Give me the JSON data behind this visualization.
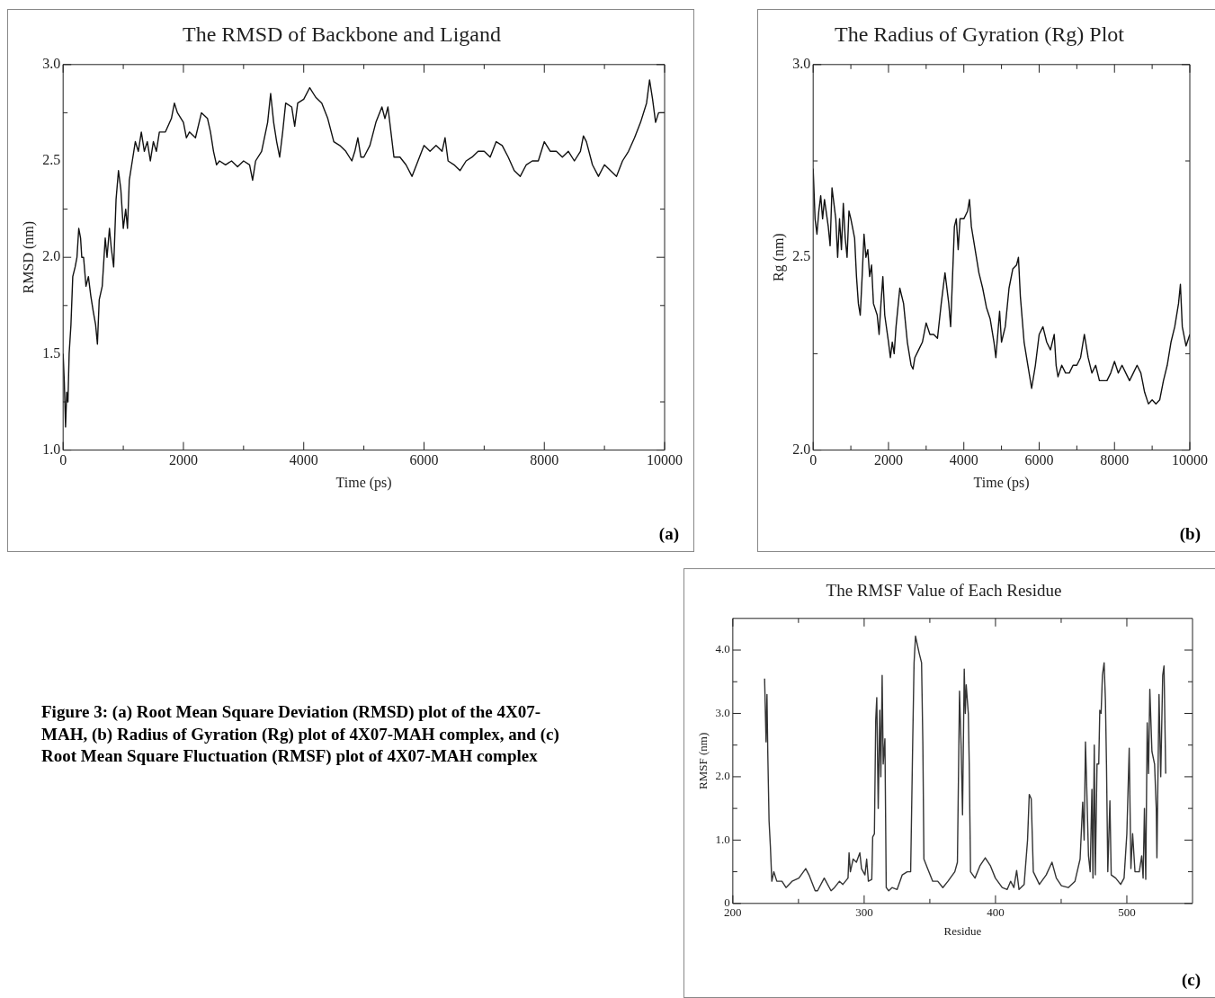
{
  "chart_data": [
    {
      "type": "line",
      "title": "The RMSD of Backbone and Ligand",
      "xlabel": "Time (ps)",
      "ylabel": "RMSD (nm)",
      "annotations": [
        "(a)"
      ],
      "xlim": [
        0,
        10000
      ],
      "ylim": [
        1,
        3
      ],
      "xticks": [
        0,
        {
          "value": 1000,
          "label": null
        },
        2000,
        {
          "value": 3000,
          "label": null
        },
        4000,
        {
          "value": 5000,
          "label": null
        },
        6000,
        {
          "value": 7000,
          "label": null
        },
        8000,
        {
          "value": 9000,
          "label": null
        },
        10000
      ],
      "yticks": [
        {
          "value": 1,
          "label": "1.0"
        },
        {
          "value": 1.25,
          "label": null
        },
        1.5,
        {
          "value": 1.75,
          "label": null
        },
        {
          "value": 2,
          "label": "2.0"
        },
        {
          "value": 2.25,
          "label": null
        },
        2.5,
        {
          "value": 2.75,
          "label": null
        },
        {
          "value": 3,
          "label": "3.0"
        }
      ],
      "x": [
        0,
        20,
        40,
        60,
        80,
        100,
        130,
        160,
        200,
        230,
        260,
        290,
        310,
        340,
        380,
        420,
        460,
        500,
        540,
        570,
        600,
        650,
        700,
        730,
        770,
        800,
        840,
        880,
        920,
        960,
        1000,
        1040,
        1070,
        1100,
        1150,
        1200,
        1250,
        1300,
        1350,
        1400,
        1450,
        1500,
        1550,
        1600,
        1700,
        1800,
        1850,
        1900,
        2000,
        2050,
        2100,
        2200,
        2300,
        2400,
        2450,
        2500,
        2550,
        2600,
        2700,
        2800,
        2900,
        3000,
        3100,
        3150,
        3200,
        3300,
        3400,
        3450,
        3500,
        3550,
        3600,
        3650,
        3700,
        3800,
        3850,
        3900,
        4000,
        4100,
        4200,
        4300,
        4400,
        4500,
        4600,
        4700,
        4800,
        4850,
        4900,
        4950,
        5000,
        5100,
        5200,
        5300,
        5350,
        5400,
        5450,
        5500,
        5600,
        5700,
        5800,
        5900,
        6000,
        6100,
        6200,
        6300,
        6350,
        6400,
        6500,
        6600,
        6700,
        6800,
        6900,
        7000,
        7100,
        7200,
        7300,
        7400,
        7500,
        7600,
        7700,
        7800,
        7900,
        8000,
        8100,
        8200,
        8300,
        8400,
        8500,
        8600,
        8650,
        8700,
        8800,
        8900,
        9000,
        9100,
        9200,
        9300,
        9400,
        9500,
        9600,
        9700,
        9750,
        9800,
        9850,
        9900,
        10000
      ],
      "series": [
        {
          "color": "#111111",
          "values": [
            1.5,
            1.35,
            1.12,
            1.3,
            1.25,
            1.5,
            1.65,
            1.9,
            1.95,
            2.0,
            2.15,
            2.1,
            2.0,
            2.0,
            1.85,
            1.9,
            1.8,
            1.72,
            1.65,
            1.55,
            1.78,
            1.85,
            2.1,
            2.0,
            2.15,
            2.05,
            1.95,
            2.3,
            2.45,
            2.35,
            2.15,
            2.25,
            2.15,
            2.4,
            2.5,
            2.6,
            2.55,
            2.65,
            2.55,
            2.6,
            2.5,
            2.6,
            2.55,
            2.65,
            2.65,
            2.72,
            2.8,
            2.75,
            2.7,
            2.62,
            2.65,
            2.62,
            2.75,
            2.72,
            2.65,
            2.55,
            2.48,
            2.5,
            2.48,
            2.5,
            2.47,
            2.5,
            2.48,
            2.4,
            2.5,
            2.55,
            2.7,
            2.85,
            2.7,
            2.6,
            2.52,
            2.65,
            2.8,
            2.78,
            2.68,
            2.8,
            2.82,
            2.88,
            2.83,
            2.8,
            2.72,
            2.6,
            2.58,
            2.55,
            2.5,
            2.55,
            2.62,
            2.52,
            2.52,
            2.58,
            2.7,
            2.78,
            2.72,
            2.78,
            2.65,
            2.52,
            2.52,
            2.48,
            2.42,
            2.5,
            2.58,
            2.55,
            2.58,
            2.55,
            2.62,
            2.5,
            2.48,
            2.45,
            2.5,
            2.52,
            2.55,
            2.55,
            2.52,
            2.6,
            2.58,
            2.52,
            2.45,
            2.42,
            2.48,
            2.5,
            2.5,
            2.6,
            2.55,
            2.55,
            2.52,
            2.55,
            2.5,
            2.55,
            2.63,
            2.6,
            2.48,
            2.42,
            2.48,
            2.45,
            2.42,
            2.5,
            2.55,
            2.62,
            2.7,
            2.8,
            2.92,
            2.82,
            2.7,
            2.75,
            2.75
          ]
        }
      ]
    },
    {
      "type": "line",
      "title": "The Radius of Gyration (Rg) Plot",
      "xlabel": "Time (ps)",
      "ylabel": "Rg (nm)",
      "annotations": [
        "(b)"
      ],
      "xlim": [
        0,
        10000
      ],
      "ylim": [
        2,
        3
      ],
      "xticks": [
        0,
        {
          "value": 1000,
          "label": null
        },
        2000,
        {
          "value": 3000,
          "label": null
        },
        4000,
        {
          "value": 5000,
          "label": null
        },
        6000,
        {
          "value": 7000,
          "label": null
        },
        8000,
        {
          "value": 9000,
          "label": null
        },
        10000
      ],
      "yticks": [
        {
          "value": 2,
          "label": "2.0"
        },
        {
          "value": 2.25,
          "label": null
        },
        2.5,
        {
          "value": 2.75,
          "label": null
        },
        {
          "value": 3,
          "label": "3.0"
        }
      ],
      "x": [
        0,
        50,
        100,
        150,
        200,
        250,
        300,
        400,
        450,
        500,
        550,
        600,
        650,
        700,
        750,
        800,
        850,
        900,
        950,
        1000,
        1100,
        1150,
        1200,
        1250,
        1300,
        1350,
        1400,
        1450,
        1500,
        1550,
        1600,
        1700,
        1750,
        1800,
        1850,
        1900,
        2000,
        2050,
        2100,
        2150,
        2200,
        2300,
        2400,
        2500,
        2600,
        2650,
        2700,
        2800,
        2900,
        3000,
        3100,
        3200,
        3300,
        3400,
        3500,
        3600,
        3650,
        3700,
        3750,
        3800,
        3850,
        3900,
        4000,
        4100,
        4150,
        4200,
        4300,
        4400,
        4500,
        4600,
        4700,
        4800,
        4850,
        4900,
        4950,
        5000,
        5100,
        5200,
        5300,
        5400,
        5450,
        5500,
        5600,
        5700,
        5800,
        5900,
        6000,
        6100,
        6200,
        6300,
        6400,
        6450,
        6500,
        6600,
        6700,
        6800,
        6900,
        7000,
        7100,
        7200,
        7300,
        7400,
        7500,
        7600,
        7700,
        7800,
        7900,
        8000,
        8100,
        8200,
        8300,
        8400,
        8500,
        8600,
        8700,
        8800,
        8900,
        9000,
        9100,
        9200,
        9300,
        9400,
        9500,
        9600,
        9700,
        9750,
        9800,
        9900,
        10000
      ],
      "series": [
        {
          "color": "#111111",
          "values": [
            2.73,
            2.6,
            2.56,
            2.62,
            2.66,
            2.6,
            2.65,
            2.58,
            2.53,
            2.68,
            2.64,
            2.6,
            2.5,
            2.6,
            2.52,
            2.64,
            2.55,
            2.5,
            2.62,
            2.6,
            2.55,
            2.45,
            2.38,
            2.35,
            2.45,
            2.56,
            2.5,
            2.52,
            2.45,
            2.48,
            2.38,
            2.35,
            2.3,
            2.38,
            2.45,
            2.35,
            2.28,
            2.24,
            2.28,
            2.25,
            2.32,
            2.42,
            2.38,
            2.28,
            2.22,
            2.21,
            2.24,
            2.26,
            2.28,
            2.33,
            2.3,
            2.3,
            2.29,
            2.38,
            2.46,
            2.38,
            2.32,
            2.45,
            2.58,
            2.6,
            2.52,
            2.6,
            2.6,
            2.62,
            2.65,
            2.58,
            2.52,
            2.46,
            2.42,
            2.37,
            2.34,
            2.28,
            2.24,
            2.3,
            2.36,
            2.28,
            2.32,
            2.42,
            2.47,
            2.48,
            2.5,
            2.4,
            2.28,
            2.22,
            2.16,
            2.22,
            2.3,
            2.32,
            2.28,
            2.26,
            2.3,
            2.22,
            2.19,
            2.22,
            2.2,
            2.2,
            2.22,
            2.22,
            2.24,
            2.3,
            2.24,
            2.2,
            2.22,
            2.18,
            2.18,
            2.18,
            2.2,
            2.23,
            2.2,
            2.22,
            2.2,
            2.18,
            2.2,
            2.22,
            2.2,
            2.15,
            2.12,
            2.13,
            2.12,
            2.13,
            2.18,
            2.22,
            2.28,
            2.32,
            2.38,
            2.43,
            2.32,
            2.27,
            2.3
          ]
        }
      ]
    },
    {
      "type": "line",
      "title": "The RMSF Value of Each Residue",
      "xlabel": "Residue",
      "ylabel": "RMSF (nm)",
      "annotations": [
        "(c)"
      ],
      "xlim": [
        200,
        550
      ],
      "ylim": [
        0,
        4.5
      ],
      "xticks": [
        200,
        {
          "value": 250,
          "label": null
        },
        300,
        {
          "value": 350,
          "label": null
        },
        400,
        {
          "value": 450,
          "label": null
        },
        500
      ],
      "yticks": [
        0,
        {
          "value": 0.5,
          "label": null
        },
        {
          "value": 1,
          "label": "1.0"
        },
        {
          "value": 1.5,
          "label": null
        },
        {
          "value": 2,
          "label": "2.0"
        },
        {
          "value": 2.5,
          "label": null
        },
        {
          "value": 3,
          "label": "3.0"
        },
        {
          "value": 3.5,
          "label": null
        },
        {
          "value": 4,
          "label": "4.0"
        }
      ],
      "x": [
        224.2,
        225.3,
        226,
        226.6,
        227.6,
        228.6,
        229.7,
        231.2,
        233.5,
        237.4,
        240.5,
        245.1,
        250.3,
        255.5,
        258,
        262.7,
        264.5,
        269.6,
        274.8,
        277.4,
        281.2,
        283.8,
        287.7,
        288.5,
        289.5,
        291.6,
        294.1,
        296.7,
        298,
        300.6,
        301.9,
        303.2,
        305.8,
        306.5,
        307.8,
        308.8,
        309.6,
        310.7,
        311.9,
        312.7,
        313.7,
        314.5,
        315.8,
        316.8,
        318.7,
        321.2,
        325.1,
        329,
        332.8,
        335.4,
        337,
        338,
        339.1,
        341.9,
        343.7,
        344.7,
        345.5,
        348.3,
        352.2,
        356,
        359.9,
        363.8,
        369,
        371,
        372.6,
        373.8,
        374.9,
        376.2,
        377,
        377.7,
        379.3,
        380,
        381,
        384.4,
        388.3,
        392.2,
        396,
        399.9,
        405.1,
        408.9,
        411.5,
        414,
        416.1,
        417.9,
        421.8,
        424.4,
        425.7,
        427.2,
        428.8,
        433.4,
        438.6,
        443,
        446.3,
        450.2,
        455.4,
        460.5,
        464.4,
        466.4,
        467.5,
        468.5,
        469.5,
        470.8,
        472.1,
        473.4,
        474.2,
        475.2,
        476,
        477.3,
        478.6,
        479.4,
        480.4,
        481.4,
        482.7,
        483.7,
        484.5,
        485.5,
        487.1,
        488.1,
        491.5,
        495.3,
        497.9,
        500,
        501.8,
        503.1,
        504.4,
        506.2,
        509.5,
        511.3,
        512.4,
        513.4,
        514.4,
        515.5,
        516.5,
        517.5,
        519.1,
        521.1,
        522.4,
        522.9,
        524.5,
        525.8,
        527.3,
        528.3,
        529.6
      ],
      "series": [
        {
          "color": "#333333",
          "values": [
            3.55,
            2.55,
            3.3,
            2.4,
            1.3,
            0.9,
            0.35,
            0.5,
            0.35,
            0.35,
            0.25,
            0.35,
            0.4,
            0.55,
            0.45,
            0.2,
            0.2,
            0.4,
            0.2,
            0.25,
            0.35,
            0.3,
            0.4,
            0.8,
            0.5,
            0.7,
            0.65,
            0.8,
            0.55,
            0.45,
            0.7,
            0.35,
            0.38,
            1.05,
            1.1,
            2.9,
            3.25,
            1.5,
            3.05,
            2.0,
            3.6,
            2.2,
            2.6,
            0.25,
            0.2,
            0.25,
            0.22,
            0.45,
            0.5,
            0.5,
            2.6,
            3.8,
            4.22,
            3.95,
            3.8,
            2.5,
            0.7,
            0.55,
            0.35,
            0.35,
            0.25,
            0.35,
            0.5,
            0.65,
            3.35,
            2.5,
            1.4,
            3.7,
            3.0,
            3.45,
            3.0,
            2.2,
            0.5,
            0.4,
            0.6,
            0.72,
            0.6,
            0.4,
            0.25,
            0.22,
            0.35,
            0.25,
            0.52,
            0.22,
            0.3,
            1.0,
            1.72,
            1.65,
            0.5,
            0.3,
            0.45,
            0.65,
            0.4,
            0.28,
            0.25,
            0.35,
            0.7,
            1.6,
            1.0,
            2.55,
            1.8,
            0.75,
            0.5,
            1.8,
            0.4,
            2.5,
            0.45,
            2.2,
            2.2,
            3.05,
            3.0,
            3.6,
            3.8,
            3.2,
            2.2,
            0.5,
            1.62,
            0.45,
            0.4,
            0.3,
            0.4,
            1.1,
            2.45,
            0.55,
            1.1,
            0.5,
            0.5,
            0.75,
            0.4,
            1.5,
            0.38,
            2.85,
            2.05,
            3.38,
            2.4,
            2.2,
            1.5,
            0.72,
            3.3,
            2.0,
            3.6,
            3.75,
            2.05
          ]
        }
      ]
    },
    {
      "type": "other",
      "annotations": [
        "Figure 3: (a) Root Mean Square Deviation (RMSD) plot of the 4X07-MAH, (b) Radius of Gyration (Rg) plot of 4X07-MAH complex, and (c) Root Mean Square Fluctuation (RMSF) plot of 4X07-MAH complex"
      ]
    }
  ]
}
